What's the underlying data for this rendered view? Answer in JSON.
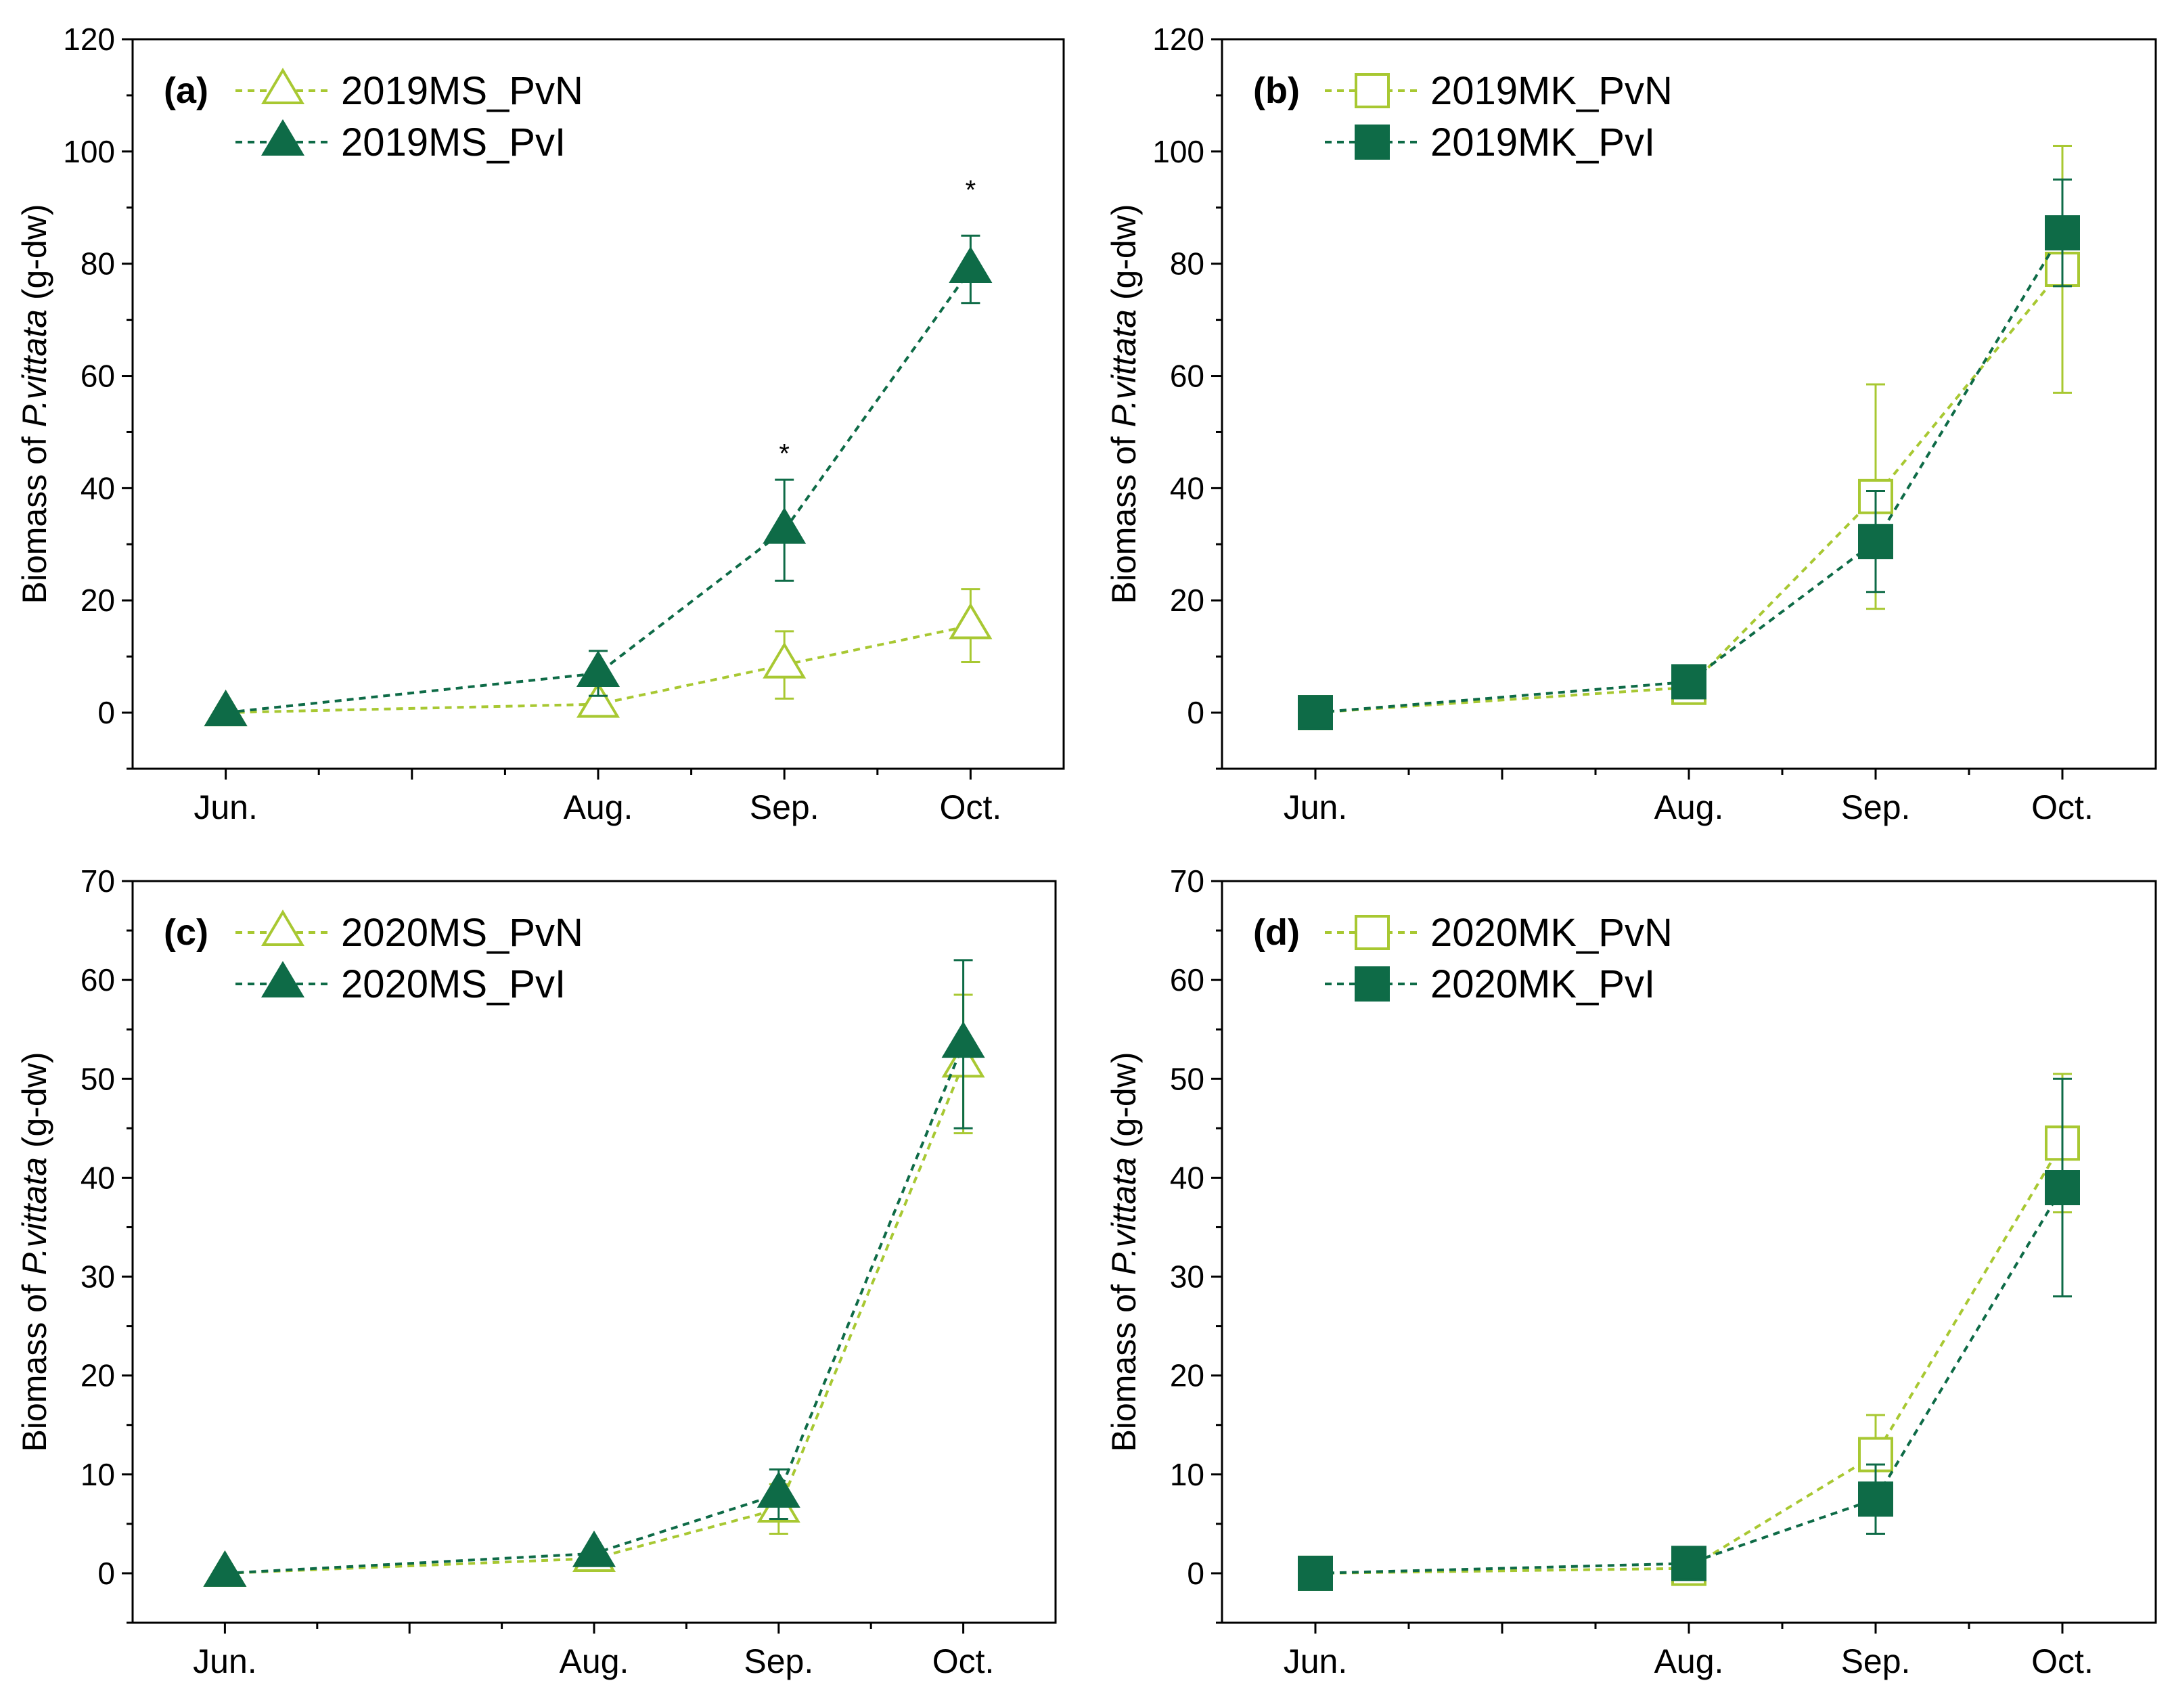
{
  "figure": {
    "colors": {
      "pvn": "#a8c832",
      "pvi": "#0e6b47",
      "axis": "#000000"
    }
  },
  "chart_data": [
    {
      "type": "line",
      "panel_label": "(a)",
      "ylabel_prefix": "Biomass of ",
      "ylabel_italic": "P.vittata",
      "ylabel_suffix": " (g-dw)",
      "x_categories": [
        "Jun.",
        "Aug.",
        "Sep.",
        "Oct."
      ],
      "x_positions": [
        0,
        2,
        3,
        4
      ],
      "xlim": [
        -0.5,
        4.5
      ],
      "ylim": [
        -10,
        120
      ],
      "y_ticks": [
        0,
        20,
        40,
        60,
        80,
        100,
        120
      ],
      "series": [
        {
          "name": "2019MS_PvN",
          "marker": "triangle",
          "filled": false,
          "color": "#a8c832",
          "values": [
            0,
            1.5,
            8.5,
            15.5
          ],
          "errors": [
            0,
            1.5,
            6,
            6.5
          ]
        },
        {
          "name": "2019MS_PvI",
          "marker": "triangle",
          "filled": true,
          "color": "#0e6b47",
          "values": [
            0,
            7,
            32.5,
            79
          ],
          "errors": [
            0,
            4,
            9,
            6
          ]
        }
      ],
      "annotations": [
        {
          "text": "*",
          "x": 3,
          "y": 46
        },
        {
          "text": "*",
          "x": 4,
          "y": 93
        }
      ]
    },
    {
      "type": "line",
      "panel_label": "(b)",
      "ylabel_prefix": "Biomass of ",
      "ylabel_italic": "P.vittata",
      "ylabel_suffix": " (g-dw)",
      "x_categories": [
        "Jun.",
        "Aug.",
        "Sep.",
        "Oct."
      ],
      "x_positions": [
        0,
        2,
        3,
        4
      ],
      "xlim": [
        -0.5,
        4.5
      ],
      "ylim": [
        -10,
        120
      ],
      "y_ticks": [
        0,
        20,
        40,
        60,
        80,
        100,
        120
      ],
      "series": [
        {
          "name": "2019MK_PvN",
          "marker": "square",
          "filled": false,
          "color": "#a8c832",
          "values": [
            0,
            4.5,
            38.5,
            79
          ],
          "errors": [
            0,
            2,
            20,
            22
          ]
        },
        {
          "name": "2019MK_PvI",
          "marker": "square",
          "filled": true,
          "color": "#0e6b47",
          "values": [
            0,
            5.5,
            30.5,
            85.5
          ],
          "errors": [
            0,
            2,
            9,
            9.5
          ]
        }
      ],
      "annotations": []
    },
    {
      "type": "line",
      "panel_label": "(c)",
      "ylabel_prefix": "Biomass of ",
      "ylabel_italic": "P.vittata",
      "ylabel_suffix": " (g-dw)",
      "x_categories": [
        "Jun.",
        "Aug.",
        "Sep.",
        "Oct."
      ],
      "x_positions": [
        0,
        2,
        3,
        4
      ],
      "xlim": [
        -0.5,
        4.5
      ],
      "ylim": [
        -5,
        70
      ],
      "y_ticks": [
        0,
        10,
        20,
        30,
        40,
        50,
        60,
        70
      ],
      "series": [
        {
          "name": "2020MS_PvN",
          "marker": "triangle",
          "filled": false,
          "color": "#a8c832",
          "values": [
            0,
            1.5,
            6.5,
            51.5
          ],
          "errors": [
            0,
            0.5,
            2.5,
            7
          ]
        },
        {
          "name": "2020MS_PvI",
          "marker": "triangle",
          "filled": true,
          "color": "#0e6b47",
          "values": [
            0,
            2,
            8,
            53.5
          ],
          "errors": [
            0,
            0.5,
            2.5,
            8.5
          ]
        }
      ],
      "annotations": []
    },
    {
      "type": "line",
      "panel_label": "(d)",
      "ylabel_prefix": "Biomass of ",
      "ylabel_italic": "P.vittata",
      "ylabel_suffix": " (g-dw)",
      "x_categories": [
        "Jun.",
        "Aug.",
        "Sep.",
        "Oct."
      ],
      "x_positions": [
        0,
        2,
        3,
        4
      ],
      "xlim": [
        -0.5,
        4.5
      ],
      "ylim": [
        -5,
        70
      ],
      "y_ticks": [
        0,
        10,
        20,
        30,
        40,
        50,
        60,
        70
      ],
      "series": [
        {
          "name": "2020MK_PvN",
          "marker": "square",
          "filled": false,
          "color": "#a8c832",
          "values": [
            0,
            0.5,
            12,
            43.5
          ],
          "errors": [
            0,
            0.5,
            4,
            7
          ]
        },
        {
          "name": "2020MK_PvI",
          "marker": "square",
          "filled": true,
          "color": "#0e6b47",
          "values": [
            0,
            1,
            7.5,
            39
          ],
          "errors": [
            0,
            0.5,
            3.5,
            11
          ]
        }
      ],
      "annotations": []
    }
  ]
}
